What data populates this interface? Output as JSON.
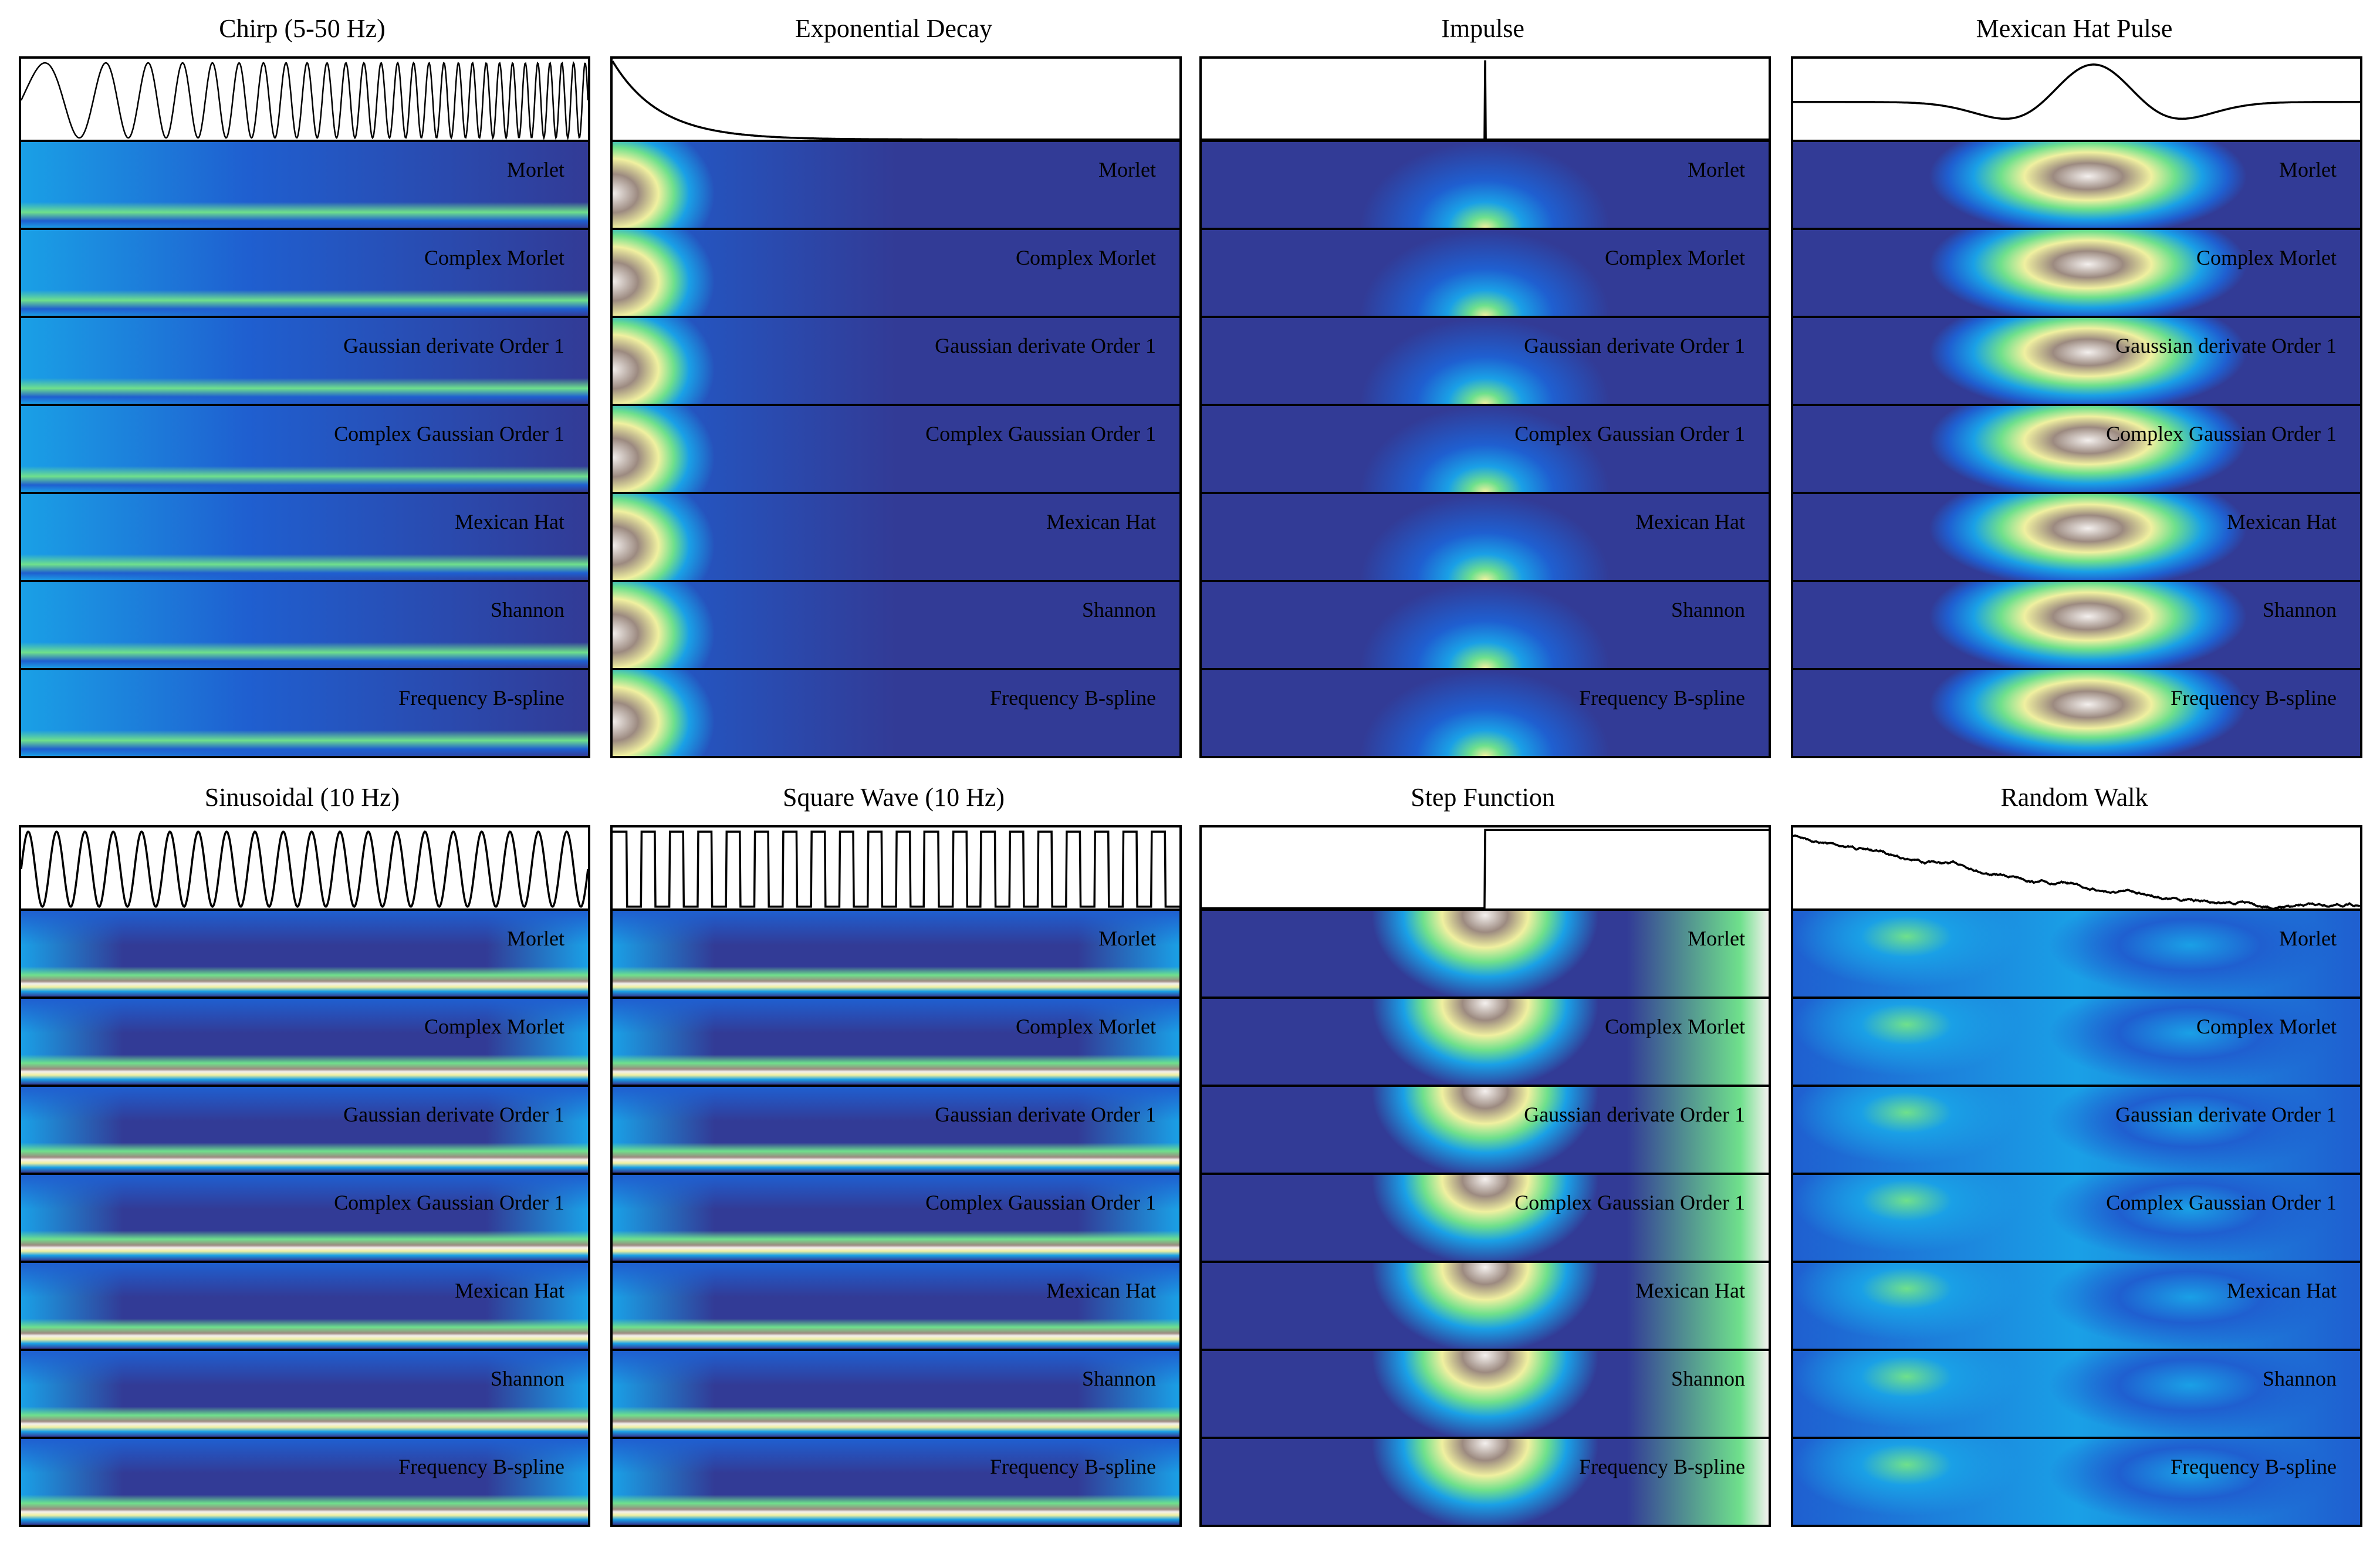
{
  "chart_data": {
    "type": "heatmap",
    "title": "",
    "description_kind": "scalogram grid",
    "wavelets": [
      "Morlet",
      "Complex Morlet",
      "Gaussian derivate Order 1",
      "Complex Gaussian Order 1",
      "Mexican Hat",
      "Shannon",
      "Frequency B-spline"
    ],
    "colormap": [
      "#323b96",
      "#1f5fd0",
      "#1aa0e6",
      "#6fe08c",
      "#f0f0a0",
      "#9c8a80",
      "#f4f0ee"
    ],
    "signals": [
      {
        "name": "Chirp (5-50 Hz)",
        "kind": "chirp"
      },
      {
        "name": "Exponential Decay",
        "kind": "expdecay"
      },
      {
        "name": "Impulse",
        "kind": "impulse"
      },
      {
        "name": "Mexican Hat Pulse",
        "kind": "mexhat"
      },
      {
        "name": "Sinusoidal (10 Hz)",
        "kind": "sine"
      },
      {
        "name": "Square Wave (10 Hz)",
        "kind": "square"
      },
      {
        "name": "Step Function",
        "kind": "step"
      },
      {
        "name": "Random Walk",
        "kind": "randomwalk"
      }
    ]
  }
}
